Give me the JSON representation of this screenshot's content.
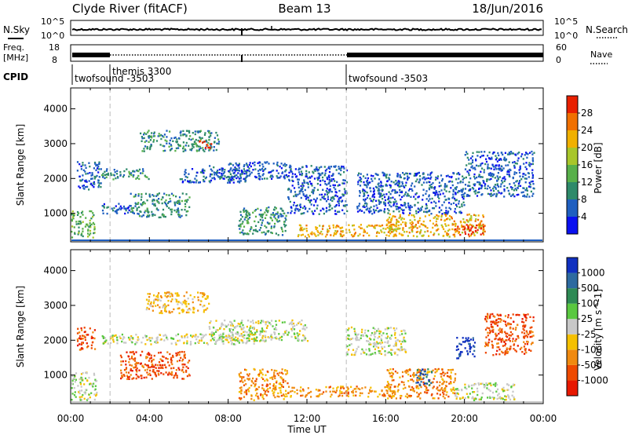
{
  "header": {
    "station": "Clyde River (fitACF)",
    "beam": "Beam 13",
    "date": "18/Jun/2016"
  },
  "nsky_panel": {
    "left_label": "N.Sky",
    "right_label": "N.Search",
    "ticks_left": [
      "10^5",
      "10^0"
    ],
    "ticks_right": [
      "10^5",
      "10^0"
    ]
  },
  "freq_panel": {
    "left_label_1": "Freq.",
    "left_label_2": "[MHz]",
    "right_label": "Nave",
    "ticks_left": [
      "18",
      "8"
    ],
    "ticks_right": [
      "60",
      "0"
    ]
  },
  "cpid": {
    "label": "CPID",
    "segments": [
      {
        "name": "twofsound -3503",
        "start_h": 0.0
      },
      {
        "name": "themis 3300",
        "start_h": 2.0
      },
      {
        "name": "twofsound -3503",
        "start_h": 14.0
      }
    ]
  },
  "x_axis": {
    "label": "Time UT",
    "tick_labels": [
      "00:00",
      "04:00",
      "08:00",
      "12:00",
      "16:00",
      "20:00",
      "00:00"
    ],
    "range_h": [
      0,
      24
    ]
  },
  "chart_data": [
    {
      "type": "heatmap",
      "title": "Power",
      "ylabel": "Slant Range [km]",
      "yticks": [
        "1000",
        "2000",
        "3000",
        "4000"
      ],
      "ylim": [
        180,
        4600
      ],
      "colorbar": {
        "label": "Power [dB]",
        "ticks": [
          "4",
          "8",
          "12",
          "16",
          "20",
          "24",
          "28"
        ],
        "colors": [
          "#0a10f0",
          "#1f5fc0",
          "#2e8a6a",
          "#58b04a",
          "#a8c62a",
          "#f0b000",
          "#f07000",
          "#e82000"
        ]
      },
      "regions": [
        {
          "t": [
            0.0,
            1.2
          ],
          "r": [
            300,
            1100
          ],
          "level": 3
        },
        {
          "t": [
            0.3,
            1.5
          ],
          "r": [
            1700,
            2500
          ],
          "level": 1
        },
        {
          "t": [
            1.5,
            4.0
          ],
          "r": [
            2000,
            2300
          ],
          "level": 2
        },
        {
          "t": [
            1.5,
            3.0
          ],
          "r": [
            1000,
            1300
          ],
          "level": 1
        },
        {
          "t": [
            3.0,
            6.0
          ],
          "r": [
            900,
            1600
          ],
          "level": 2
        },
        {
          "t": [
            3.5,
            7.5
          ],
          "r": [
            2800,
            3400
          ],
          "level": 2
        },
        {
          "t": [
            6.5,
            7.2
          ],
          "r": [
            2900,
            3100
          ],
          "level": 7
        },
        {
          "t": [
            5.5,
            9.0
          ],
          "r": [
            1900,
            2300
          ],
          "level": 1
        },
        {
          "t": [
            7.0,
            11.0
          ],
          "r": [
            2000,
            2500
          ],
          "level": 1
        },
        {
          "t": [
            8.5,
            11.0
          ],
          "r": [
            400,
            1200
          ],
          "level": 2
        },
        {
          "t": [
            11.0,
            14.0
          ],
          "r": [
            1000,
            2400
          ],
          "level": 1
        },
        {
          "t": [
            11.5,
            16.5
          ],
          "r": [
            350,
            700
          ],
          "level": 5
        },
        {
          "t": [
            16.0,
            21.0
          ],
          "r": [
            350,
            1000
          ],
          "level": 5
        },
        {
          "t": [
            19.5,
            21.0
          ],
          "r": [
            400,
            700
          ],
          "level": 7
        },
        {
          "t": [
            14.5,
            20.0
          ],
          "r": [
            1000,
            2200
          ],
          "level": 1
        },
        {
          "t": [
            20.0,
            23.5
          ],
          "r": [
            1500,
            2800
          ],
          "level": 1
        }
      ]
    },
    {
      "type": "heatmap",
      "title": "Velocity",
      "ylabel": "Slant Range [km]",
      "yticks": [
        "1000",
        "2000",
        "3000",
        "4000"
      ],
      "ylim": [
        180,
        4600
      ],
      "colorbar": {
        "label": "Velocity [m s^-1]",
        "ticks": [
          "1000",
          "500",
          "100",
          "25",
          "-25",
          "-100",
          "-500",
          "-1000"
        ],
        "colors": [
          "#1030c0",
          "#2d6aa0",
          "#2e8a55",
          "#5ac840",
          "#c8c8c8",
          "#f5c000",
          "#f08a10",
          "#ee4a00",
          "#e81800"
        ]
      },
      "regions": [
        {
          "t": [
            0.0,
            1.3
          ],
          "r": [
            300,
            1100
          ],
          "level": 4
        },
        {
          "t": [
            0.3,
            1.2
          ],
          "r": [
            1700,
            2400
          ],
          "level": 7
        },
        {
          "t": [
            1.5,
            10.0
          ],
          "r": [
            1900,
            2200
          ],
          "level": 4
        },
        {
          "t": [
            2.5,
            6.0
          ],
          "r": [
            900,
            1700
          ],
          "level": 7
        },
        {
          "t": [
            3.8,
            7.0
          ],
          "r": [
            2800,
            3400
          ],
          "level": 5
        },
        {
          "t": [
            7.0,
            12.0
          ],
          "r": [
            2000,
            2600
          ],
          "level": 4
        },
        {
          "t": [
            8.5,
            11.0
          ],
          "r": [
            300,
            1200
          ],
          "level": 6
        },
        {
          "t": [
            11.0,
            16.5
          ],
          "r": [
            400,
            700
          ],
          "level": 6
        },
        {
          "t": [
            14.0,
            17.0
          ],
          "r": [
            1600,
            2400
          ],
          "level": 4
        },
        {
          "t": [
            16.0,
            19.5
          ],
          "r": [
            350,
            1200
          ],
          "level": 6
        },
        {
          "t": [
            17.5,
            18.3
          ],
          "r": [
            700,
            1200
          ],
          "level": 1
        },
        {
          "t": [
            19.5,
            20.5
          ],
          "r": [
            1500,
            2100
          ],
          "level": 0
        },
        {
          "t": [
            19.5,
            22.5
          ],
          "r": [
            300,
            800
          ],
          "level": 4
        },
        {
          "t": [
            21.0,
            23.5
          ],
          "r": [
            1600,
            2800
          ],
          "level": 7
        }
      ]
    }
  ]
}
